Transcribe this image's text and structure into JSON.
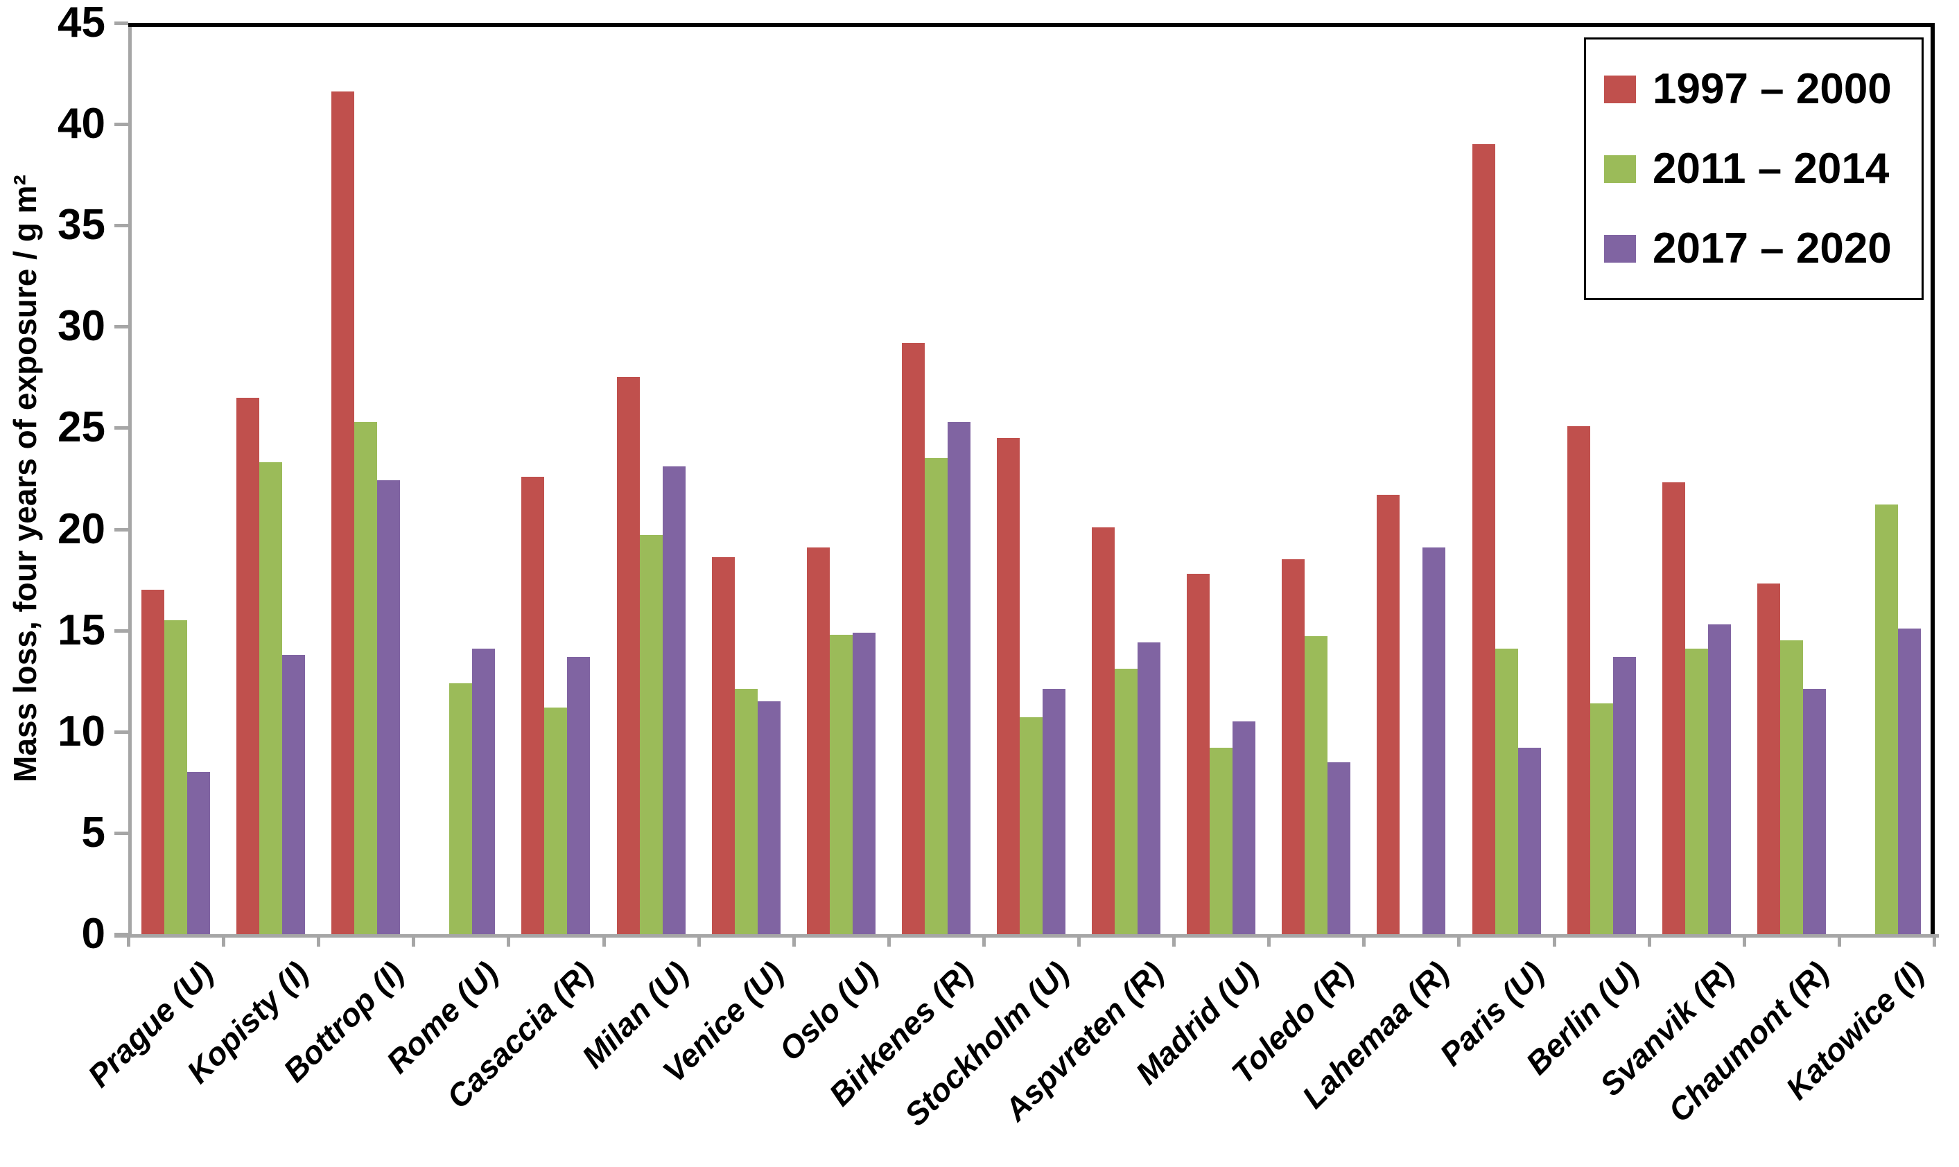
{
  "chart_data": {
    "type": "bar",
    "title": "",
    "ylabel": "Mass loss, four years of exposure / g m²",
    "xlabel": "",
    "ylim": [
      0,
      45
    ],
    "yticks": [
      45,
      40,
      35,
      30,
      25,
      20,
      15,
      10,
      5,
      0
    ],
    "grid": false,
    "legend_position": "top-right-inside",
    "categories": [
      "Prague (U)",
      "Kopisty (I)",
      "Bottrop (I)",
      "Rome (U)",
      "Casaccia (R)",
      "Milan (U)",
      "Venice (U)",
      "Oslo (U)",
      "Birkenes (R)",
      "Stockholm (U)",
      "Aspvreten (R)",
      "Madrid (U)",
      "Toledo (R)",
      "Lahemaa (R)",
      "Paris (U)",
      "Berlin (U)",
      "Svanvik (R)",
      "Chaumont (R)",
      "Katowice (I)"
    ],
    "series": [
      {
        "name": "1997 – 2000",
        "color": "#C0504D",
        "values": [
          17.0,
          26.5,
          41.6,
          null,
          22.6,
          27.5,
          18.6,
          19.1,
          29.2,
          24.5,
          20.1,
          17.8,
          18.5,
          21.7,
          39.0,
          25.1,
          22.3,
          17.3,
          null
        ]
      },
      {
        "name": "2011 – 2014",
        "color": "#9BBB59",
        "values": [
          15.5,
          23.3,
          25.3,
          12.4,
          11.2,
          19.7,
          12.1,
          14.8,
          23.5,
          10.7,
          13.1,
          9.2,
          14.7,
          null,
          14.1,
          11.4,
          14.1,
          14.5,
          21.2
        ]
      },
      {
        "name": "2017 – 2020",
        "color": "#8064A2",
        "values": [
          8.0,
          13.8,
          22.4,
          14.1,
          13.7,
          23.1,
          11.5,
          14.9,
          25.3,
          12.1,
          14.4,
          10.5,
          8.5,
          19.1,
          9.2,
          13.7,
          15.3,
          12.1,
          15.1
        ]
      }
    ]
  },
  "colors": {
    "axis": "#A6A6A6",
    "border": "#000000",
    "background": "#FFFFFF",
    "text": "#000000"
  }
}
